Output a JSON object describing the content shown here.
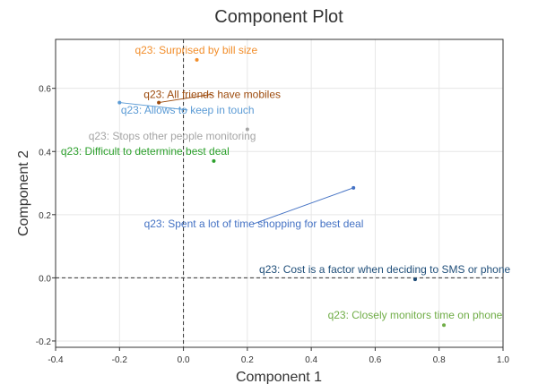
{
  "chart_data": {
    "type": "scatter",
    "title": "Component Plot",
    "xlabel": "Component 1",
    "ylabel": "Component 2",
    "xlim": [
      -0.4,
      1.0
    ],
    "ylim": [
      -0.22,
      0.755
    ],
    "xticks": [
      -0.4,
      -0.2,
      0.0,
      0.2,
      0.4,
      0.6,
      0.8,
      1.0
    ],
    "xtick_labels": [
      "-0.4",
      "-0.2",
      "0.0",
      "0.2",
      "0.4",
      "0.6",
      "0.8",
      "1.0"
    ],
    "yticks": [
      -0.2,
      0.0,
      0.2,
      0.4,
      0.6
    ],
    "ytick_labels": [
      "-0.2",
      "0.0",
      "0.2",
      "0.4",
      "0.6"
    ],
    "grid": true,
    "reference_lines": {
      "x": 0,
      "y": 0
    },
    "points": [
      {
        "label": "q23: Surprised by bill size",
        "x": 0.042,
        "y": 0.69,
        "label_x": 0.04,
        "label_y": 0.71,
        "color": "#f28e2b",
        "leader": false
      },
      {
        "label": "q23: All friends have mobiles",
        "x": -0.077,
        "y": 0.555,
        "label_x": 0.09,
        "label_y": 0.57,
        "color": "#9c4a0c",
        "leader": true
      },
      {
        "label": "q23: Allows to keep in touch",
        "x": -0.2,
        "y": 0.555,
        "label_x": 0.013,
        "label_y": 0.52,
        "color": "#5b9bd5",
        "leader": true
      },
      {
        "label": "q23: Stops other people monitoring",
        "x": 0.2,
        "y": 0.47,
        "label_x": -0.035,
        "label_y": 0.438,
        "color": "#a5a5a5",
        "leader": false
      },
      {
        "label": "q23: Difficult to determine best deal",
        "x": 0.095,
        "y": 0.37,
        "label_x": -0.12,
        "label_y": 0.39,
        "color": "#2ca02c",
        "leader": false
      },
      {
        "label": "q23: Spent a lot of time shopping for best deal",
        "x": 0.532,
        "y": 0.285,
        "label_x": 0.22,
        "label_y": 0.16,
        "color": "#4472c4",
        "leader": true
      },
      {
        "label": "q23: Cost is a factor when deciding to SMS or phone",
        "x": 0.725,
        "y": -0.005,
        "label_x": 0.63,
        "label_y": 0.015,
        "color": "#1f4e79",
        "leader": false
      },
      {
        "label": "q23: Closely monitors time on phone",
        "x": 0.815,
        "y": -0.15,
        "label_x": 0.725,
        "label_y": -0.13,
        "color": "#70ad47",
        "leader": false
      }
    ]
  }
}
